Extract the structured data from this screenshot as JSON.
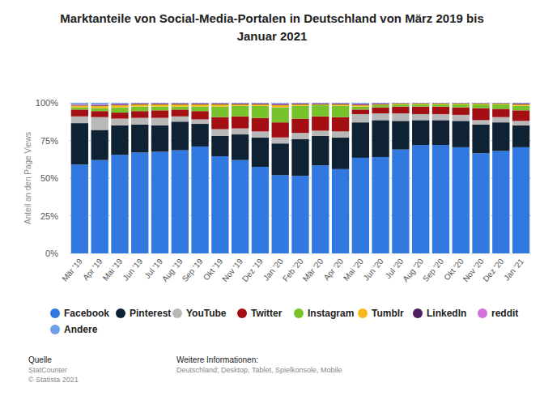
{
  "chart_data": {
    "type": "bar",
    "stacked": true,
    "grid": true,
    "legend": "bottom",
    "title": "Marktanteile von Social-Media-Portalen in Deutschland von März 2019 bis Januar 2021",
    "y_label": "Anteil an den Page Views",
    "ylim": [
      0,
      100
    ],
    "yticks": [
      {
        "value": 0,
        "label": "0%"
      },
      {
        "value": 25,
        "label": "25%"
      },
      {
        "value": 50,
        "label": "50%"
      },
      {
        "value": 75,
        "label": "75%"
      },
      {
        "value": 100,
        "label": "100%"
      }
    ],
    "categories": [
      "Mär '19",
      "Apr '19",
      "Mai '19",
      "Jun '19",
      "Jul '19",
      "Aug '19",
      "Sep '19",
      "Okt '19",
      "Nov '19",
      "Dez '19",
      "Jan '20",
      "Feb '20",
      "Mär '20",
      "Apr '20",
      "Mai '20",
      "Jun '20",
      "Jul '20",
      "Aug '20",
      "Sep '20",
      "Okt '20",
      "Nov '20",
      "Dez '20",
      "Jan '21"
    ],
    "series": [
      {
        "name": "Facebook",
        "color": "#3178e0",
        "values": [
          59,
          62,
          65.5,
          67,
          67.5,
          68.5,
          71,
          64.5,
          62,
          57.5,
          52,
          51.5,
          58.5,
          56,
          63.5,
          64,
          69,
          72,
          72,
          70.5,
          66.5,
          68,
          70.5
        ]
      },
      {
        "name": "Pinterest",
        "color": "#0e2234",
        "values": [
          27.5,
          20,
          19.5,
          18.5,
          17.5,
          19,
          15,
          13.5,
          17,
          19.5,
          21,
          24.5,
          19.5,
          21,
          23.5,
          24.5,
          19,
          16.5,
          16.5,
          17.5,
          19,
          19,
          14.5
        ]
      },
      {
        "name": "YouTube",
        "color": "#b8b8b8",
        "values": [
          4.5,
          8.5,
          4.5,
          4.5,
          5,
          3.5,
          3,
          4.5,
          4,
          4,
          4,
          4,
          3.5,
          4,
          5.5,
          4.5,
          5,
          4,
          4,
          4,
          3,
          3.5,
          3
        ]
      },
      {
        "name": "Twitter",
        "color": "#a30f12",
        "values": [
          4.5,
          4,
          4,
          4.5,
          5,
          4.5,
          5.5,
          8,
          8,
          9,
          10,
          9.5,
          9.5,
          9.5,
          3,
          4,
          4.5,
          5,
          5,
          5,
          8,
          5.5,
          7
        ]
      },
      {
        "name": "Instagram",
        "color": "#78c22b",
        "values": [
          1.5,
          2,
          3.5,
          3,
          2.5,
          2,
          3,
          7,
          7,
          8,
          10,
          8.5,
          7.5,
          7.5,
          2,
          1.5,
          1.5,
          1.5,
          1.5,
          2,
          2.5,
          3,
          3
        ]
      },
      {
        "name": "Tumblr",
        "color": "#f6b81a",
        "values": [
          1.2,
          1.5,
          1.5,
          1.5,
          1.5,
          1.5,
          1.5,
          1.5,
          1,
          1,
          1.5,
          1,
          0.5,
          1,
          1,
          0.5,
          0.5,
          0.5,
          0.5,
          0.5,
          0.5,
          0.5,
          1
        ]
      },
      {
        "name": "LinkedIn",
        "color": "#4b1f5f",
        "values": [
          0.5,
          0.5,
          0.5,
          0.5,
          0.5,
          0.5,
          0.5,
          0.5,
          0.5,
          0.5,
          0.5,
          0.5,
          0.5,
          0.5,
          0.5,
          0.5,
          0.3,
          0.3,
          0.3,
          0.3,
          0.3,
          0.3,
          0.5
        ]
      },
      {
        "name": "reddit",
        "color": "#d36fdb",
        "values": [
          0.5,
          0.5,
          0.5,
          0.3,
          0.3,
          0.3,
          0.3,
          0.3,
          0.3,
          0.3,
          0.5,
          0.3,
          0.3,
          0.3,
          0.5,
          0.3,
          0.1,
          0.1,
          0.1,
          0.1,
          0.1,
          0.1,
          0.3
        ]
      },
      {
        "name": "Andere",
        "color": "#6f9fe8",
        "values": [
          0.8,
          1,
          0.5,
          0.2,
          0.2,
          0.2,
          0.2,
          0.2,
          0.2,
          0.2,
          0.5,
          0.2,
          0.2,
          0.2,
          0.5,
          0.2,
          0.1,
          0.1,
          0.1,
          0.1,
          0.1,
          0.1,
          0.2
        ]
      }
    ],
    "source_label": "Quelle",
    "source": "StatCounter",
    "copyright": "© Statista 2021",
    "info_label": "Weitere Informationen:",
    "info": "Deutschland; Desktop, Tablet, Spielkonsole, Mobile"
  }
}
